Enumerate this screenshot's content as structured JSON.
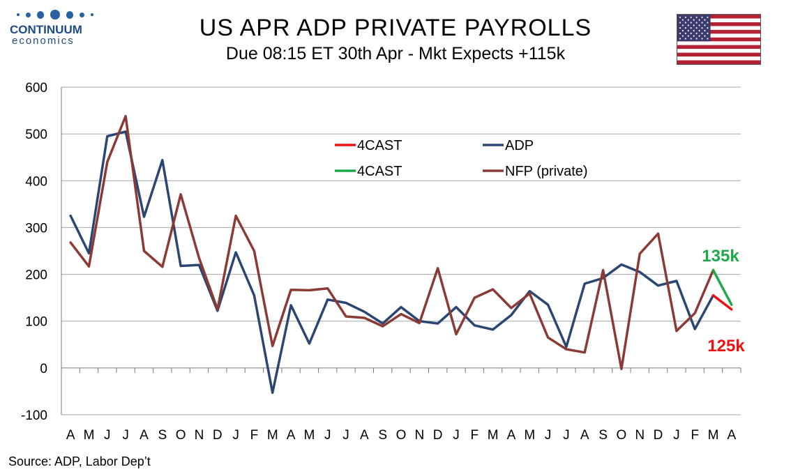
{
  "logo": {
    "name": "CONTINUUM",
    "sub": "economics"
  },
  "title": "US APR ADP PRIVATE PAYROLLS",
  "subtitle": "Due 08:15 ET 30th Apr - Mkt Expects +115k",
  "flag_icon": "us-flag-icon",
  "source": "Source: ADP, Labor Dep’t",
  "colors": {
    "adp": "#2b4673",
    "nfp": "#8b3a35",
    "fc_red": "#ee1111",
    "fc_green": "#1ea84a",
    "grid": "#a6a6a6"
  },
  "annotations": {
    "green": "135k",
    "red": "125k"
  },
  "chart_data": {
    "type": "line",
    "categories": [
      "A",
      "M",
      "J",
      "J",
      "A",
      "S",
      "O",
      "N",
      "D",
      "J",
      "F",
      "M",
      "A",
      "M",
      "J",
      "J",
      "A",
      "S",
      "O",
      "N",
      "D",
      "J",
      "F",
      "M",
      "A",
      "M",
      "J",
      "J",
      "A",
      "S",
      "O",
      "N",
      "D",
      "J",
      "F",
      "M",
      "A"
    ],
    "ylim": [
      -100,
      600
    ],
    "yticks": [
      "600",
      "500",
      "400",
      "300",
      "200",
      "100",
      "0",
      "-100"
    ],
    "grid": true,
    "legend_placement": "top-center",
    "series": [
      {
        "name": "ADP",
        "values": [
          325,
          245,
          495,
          505,
          323,
          444,
          218,
          220,
          122,
          247,
          155,
          -53,
          134,
          52,
          146,
          139,
          120,
          95,
          130,
          100,
          95,
          130,
          91,
          82,
          113,
          164,
          135,
          45,
          180,
          192,
          221,
          205,
          176,
          186,
          83,
          155,
          null
        ]
      },
      {
        "name": "NFP (private)",
        "values": [
          268,
          217,
          440,
          538,
          250,
          216,
          371,
          235,
          125,
          325,
          250,
          47,
          167,
          166,
          170,
          110,
          107,
          89,
          115,
          96,
          213,
          72,
          150,
          168,
          128,
          159,
          65,
          40,
          33,
          209,
          -2,
          244,
          287,
          79,
          117,
          209,
          null
        ]
      },
      {
        "name": "4CAST",
        "values": [
          null,
          null,
          null,
          null,
          null,
          null,
          null,
          null,
          null,
          null,
          null,
          null,
          null,
          null,
          null,
          null,
          null,
          null,
          null,
          null,
          null,
          null,
          null,
          null,
          null,
          null,
          null,
          null,
          null,
          null,
          null,
          null,
          null,
          null,
          null,
          155,
          125
        ]
      },
      {
        "name": "4CAST",
        "values": [
          null,
          null,
          null,
          null,
          null,
          null,
          null,
          null,
          null,
          null,
          null,
          null,
          null,
          null,
          null,
          null,
          null,
          null,
          null,
          null,
          null,
          null,
          null,
          null,
          null,
          null,
          null,
          null,
          null,
          null,
          null,
          null,
          null,
          null,
          null,
          209,
          135
        ]
      }
    ],
    "legend": [
      "4CAST",
      "ADP",
      "4CAST",
      "NFP (private)"
    ]
  }
}
